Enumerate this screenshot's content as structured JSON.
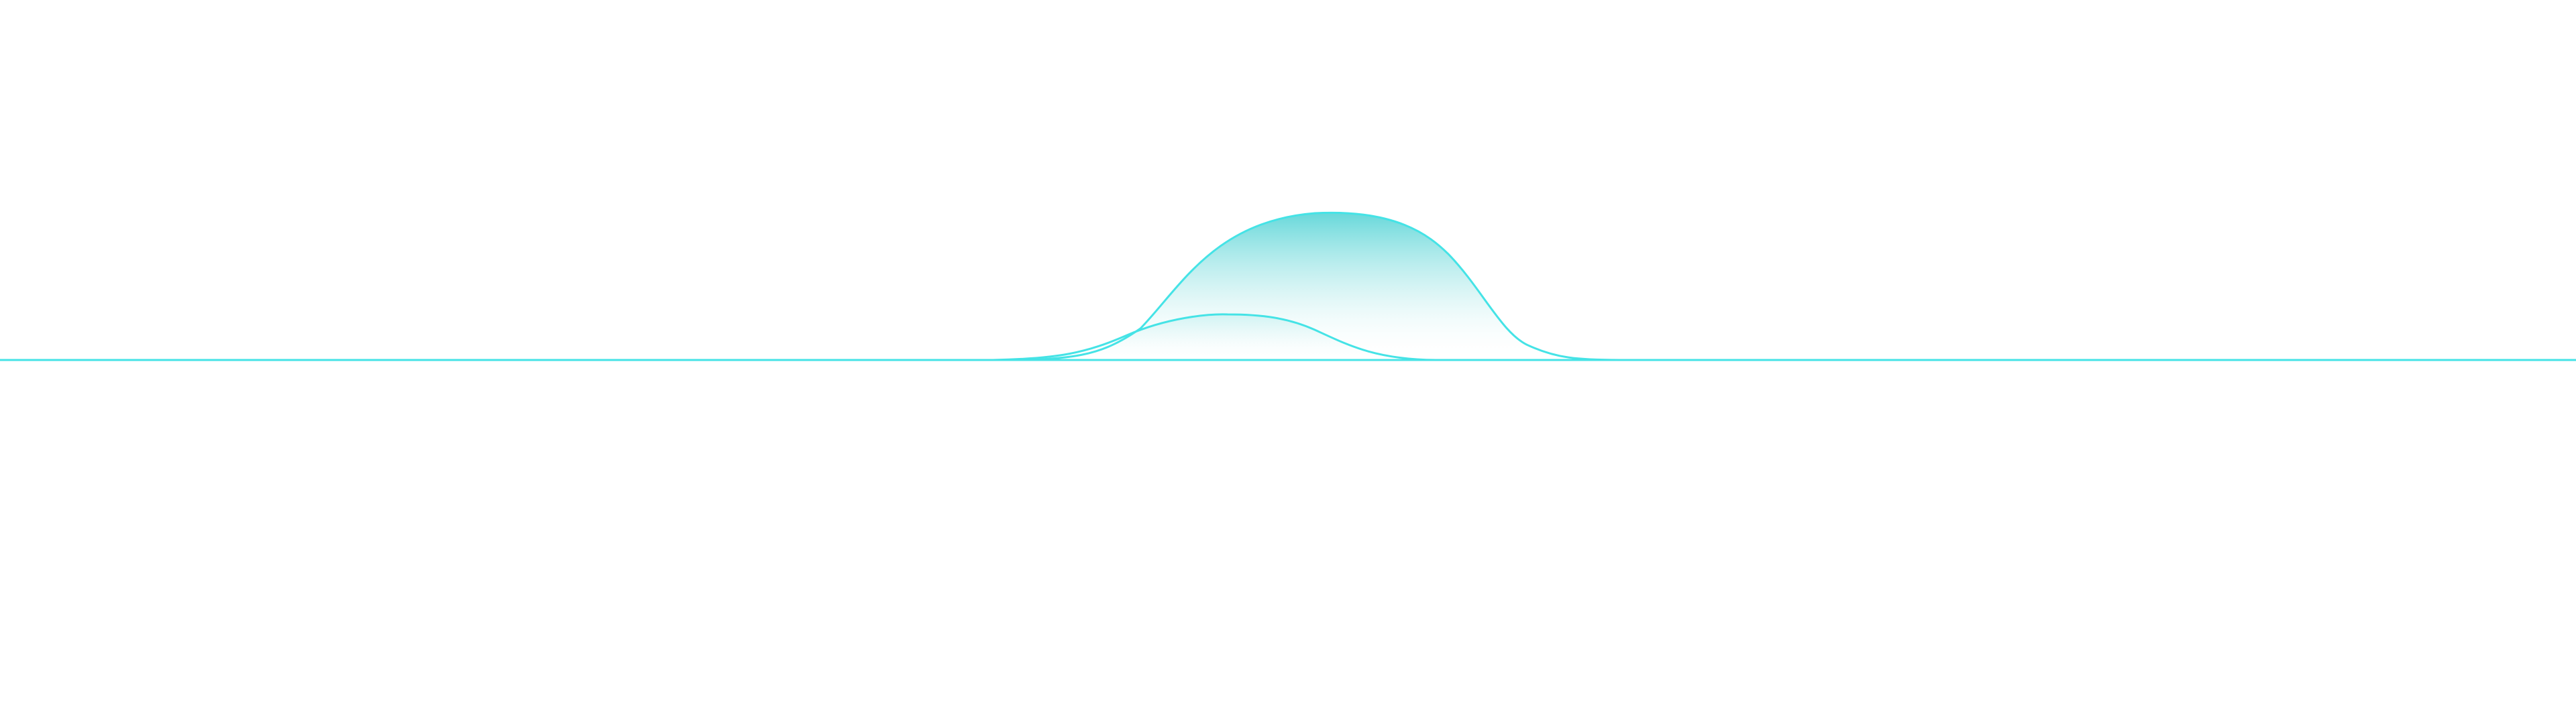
{
  "colors": {
    "background": "#ffffff",
    "stroke": "#45e3e6",
    "fill_top": "#5fd6d8",
    "fill_bottom": "#ffffff"
  },
  "icons": [
    "wave-shape"
  ]
}
